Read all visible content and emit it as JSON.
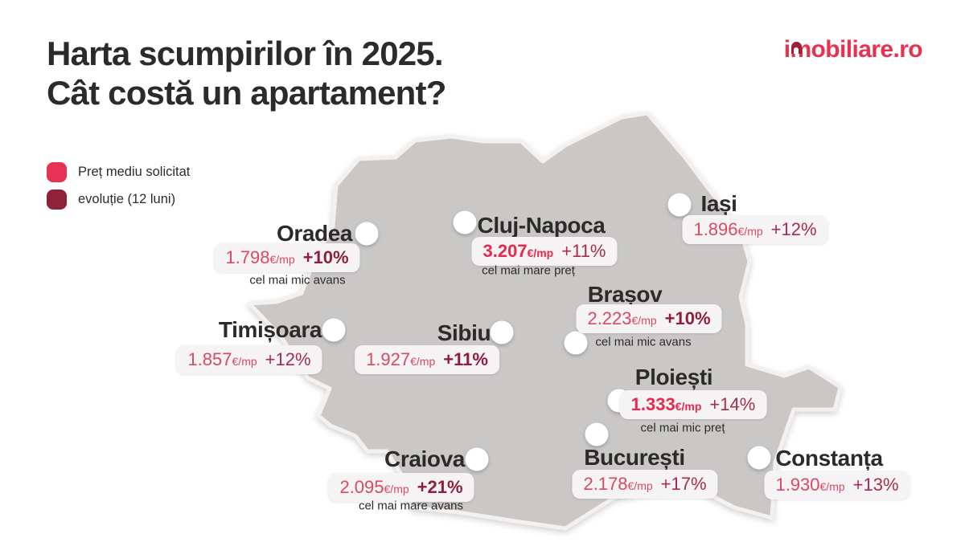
{
  "title": {
    "line1": "Harta scumpirilor în 2025.",
    "line2": "Cât costă un apartament?"
  },
  "logo": {
    "text": "imobiliare.ro"
  },
  "legend": {
    "items": [
      {
        "label": "Preț mediu solicitat",
        "color": "#e73253"
      },
      {
        "label": "evoluție (12 luni)",
        "color": "#8e2038"
      }
    ]
  },
  "chart_data": {
    "type": "map",
    "title": "Harta scumpirilor în 2025. Cât costă un apartament?",
    "region": "România",
    "unit": "€/mp",
    "legend": [
      "Preț mediu solicitat",
      "evoluție (12 luni)"
    ],
    "cities": [
      {
        "name": "Oradea",
        "price": "1.798",
        "unit": "€/mp",
        "change": "+10%",
        "note": "cel mai mic avans",
        "price_bold": false,
        "change_bold": true
      },
      {
        "name": "Cluj-Napoca",
        "price": "3.207",
        "unit": "€/mp",
        "change": "+11%",
        "note": "cel mai mare preț",
        "price_bold": true,
        "change_bold": false
      },
      {
        "name": "Iași",
        "price": "1.896",
        "unit": "€/mp",
        "change": "+12%",
        "note": "",
        "price_bold": false,
        "change_bold": false
      },
      {
        "name": "Brașov",
        "price": "2.223",
        "unit": "€/mp",
        "change": "+10%",
        "note": "cel mai mic avans",
        "price_bold": false,
        "change_bold": true
      },
      {
        "name": "Timișoara",
        "price": "1.857",
        "unit": "€/mp",
        "change": "+12%",
        "note": "",
        "price_bold": false,
        "change_bold": false
      },
      {
        "name": "Sibiu",
        "price": "1.927",
        "unit": "€/mp",
        "change": "+11%",
        "note": "",
        "price_bold": false,
        "change_bold": true
      },
      {
        "name": "Ploiești",
        "price": "1.333",
        "unit": "€/mp",
        "change": "+14%",
        "note": "cel mai mic preț",
        "price_bold": true,
        "change_bold": false
      },
      {
        "name": "Craiova",
        "price": "2.095",
        "unit": "€/mp",
        "change": "+21%",
        "note": "cel mai mare avans",
        "price_bold": false,
        "change_bold": true
      },
      {
        "name": "București",
        "price": "2.178",
        "unit": "€/mp",
        "change": "+17%",
        "note": "",
        "price_bold": false,
        "change_bold": false
      },
      {
        "name": "Constanța",
        "price": "1.930",
        "unit": "€/mp",
        "change": "+13%",
        "note": "",
        "price_bold": false,
        "change_bold": false
      }
    ]
  },
  "colors": {
    "accent": "#e8324f",
    "logo_roof": "#9b2138",
    "text_dark": "#2c2b2a",
    "price": "#d84a64",
    "price_bold": "#e8294e",
    "change": "#a52e4c",
    "change_bold": "#8e1f3b",
    "map_fill": "#c9c8c7",
    "map_stroke": "#f3f0ee",
    "pill_bg": "#f6f3f4",
    "legend_price": "#e73253",
    "legend_change": "#8e2038"
  }
}
